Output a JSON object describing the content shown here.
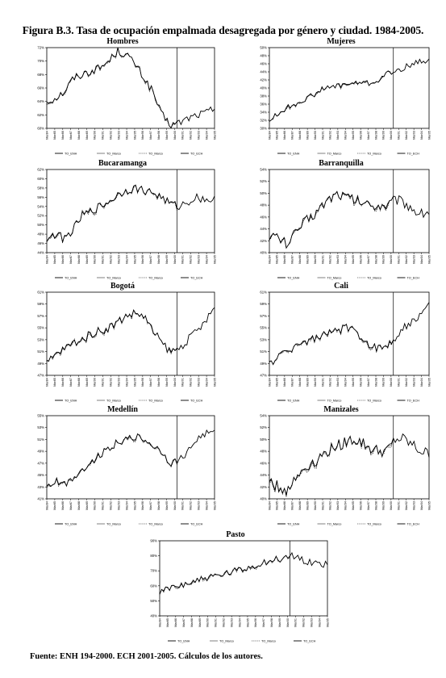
{
  "figure": {
    "title": "Figura B.3. Tasa de ocupación empalmada desagregada por género y ciudad. 1984-2005.",
    "source": "Fuente: ENH 194-2000.  ECH 2001-2005. Cálculos de los autores."
  },
  "chart_data": [
    {
      "type": "line",
      "title": "Hombres",
      "ylim": [
        0.6,
        0.72
      ],
      "yticks": [
        "60%",
        "62%",
        "64%",
        "66%",
        "68%",
        "70%",
        "72%"
      ],
      "xticks": [
        "Mar84",
        "Mar85",
        "Mar86",
        "Mar87",
        "Mar88",
        "Mar89",
        "Mar90",
        "Mar91",
        "Mar92",
        "Mar93",
        "Mar94",
        "Mar95",
        "Mar96",
        "Mar97",
        "Mar98",
        "Mar99",
        "Mar00",
        "Mar01",
        "Mar02",
        "Mar03",
        "Mar04",
        "Mar05"
      ],
      "legend": [
        "TO_ENH",
        "TO_Marco",
        "TO_Marco",
        "TO_ECH"
      ],
      "break_index": 66,
      "anchors": [
        0.64,
        0.645,
        0.655,
        0.675,
        0.68,
        0.685,
        0.69,
        0.7,
        0.715,
        0.71,
        0.695,
        0.675,
        0.655,
        0.62,
        0.605,
        0.608,
        0.615,
        0.62,
        0.623,
        0.63
      ],
      "noise": 0.006
    },
    {
      "type": "line",
      "title": "Mujeres",
      "ylim": [
        0.3,
        0.5
      ],
      "yticks": [
        "30%",
        "32%",
        "34%",
        "36%",
        "38%",
        "40%",
        "42%",
        "44%",
        "46%",
        "48%",
        "50%"
      ],
      "xticks": [
        "Mar84",
        "Mar85",
        "Mar86",
        "Mar87",
        "Mar88",
        "Mar89",
        "Mar90",
        "Mar91",
        "Mar92",
        "Mar93",
        "Mar94",
        "Mar95",
        "Mar96",
        "Mar97",
        "Mar98",
        "Mar99",
        "Mar00",
        "Mar01",
        "Mar02",
        "Mar03",
        "Mar04",
        "Mar05"
      ],
      "legend": [
        "TO_ENH",
        "TO_Marco",
        "TO_Marco",
        "TO_ECH"
      ],
      "break_index": 66,
      "anchors": [
        0.32,
        0.335,
        0.35,
        0.36,
        0.37,
        0.38,
        0.395,
        0.4,
        0.405,
        0.41,
        0.41,
        0.415,
        0.41,
        0.42,
        0.435,
        0.44,
        0.45,
        0.46,
        0.465,
        0.47
      ],
      "noise": 0.007
    },
    {
      "type": "line",
      "title": "Bucaramanga",
      "ylim": [
        0.44,
        0.62
      ],
      "yticks": [
        "44%",
        "46%",
        "48%",
        "50%",
        "52%",
        "54%",
        "56%",
        "58%",
        "60%",
        "62%"
      ],
      "xticks": [
        "Mar84",
        "Mar85",
        "Mar86",
        "Mar87",
        "Mar88",
        "Mar89",
        "Mar90",
        "Mar91",
        "Mar92",
        "Mar93",
        "Mar94",
        "Mar95",
        "Mar96",
        "Mar97",
        "Mar98",
        "Mar99",
        "Mar00",
        "Mar01",
        "Mar02",
        "Mar03",
        "Mar04",
        "Mar05"
      ],
      "legend": [
        "TO_ENH",
        "TO_Marco",
        "TO_Marco",
        "TO_ECH"
      ],
      "break_index": 66,
      "anchors": [
        0.47,
        0.48,
        0.47,
        0.49,
        0.52,
        0.53,
        0.54,
        0.55,
        0.565,
        0.575,
        0.58,
        0.575,
        0.57,
        0.56,
        0.545,
        0.54,
        0.55,
        0.56,
        0.555,
        0.555
      ],
      "noise": 0.009
    },
    {
      "type": "line",
      "title": "Barranquilla",
      "ylim": [
        0.4,
        0.54
      ],
      "yticks": [
        "40%",
        "42%",
        "44%",
        "46%",
        "48%",
        "50%",
        "52%",
        "54%"
      ],
      "xticks": [
        "Mar84",
        "Mar85",
        "Mar86",
        "Mar87",
        "Mar88",
        "Mar89",
        "Mar90",
        "Mar91",
        "Mar92",
        "Mar93",
        "Mar94",
        "Mar95",
        "Mar96",
        "Mar97",
        "Mar98",
        "Mar99",
        "Mar00",
        "Mar01",
        "Mar02",
        "Mar03",
        "Mar04",
        "Mar05"
      ],
      "legend": [
        "TO_ENH",
        "TO_Marco",
        "TO_Marco",
        "TO_ECH"
      ],
      "break_index": 66,
      "anchors": [
        0.43,
        0.425,
        0.415,
        0.43,
        0.45,
        0.46,
        0.475,
        0.49,
        0.5,
        0.495,
        0.49,
        0.485,
        0.48,
        0.48,
        0.48,
        0.49,
        0.485,
        0.475,
        0.465,
        0.47
      ],
      "noise": 0.009
    },
    {
      "type": "line",
      "title": "Bogotá",
      "ylim": [
        0.47,
        0.61
      ],
      "yticks": [
        "47%",
        "49%",
        "51%",
        "53%",
        "55%",
        "57%",
        "59%",
        "61%"
      ],
      "xticks": [
        "Mar84",
        "Mar85",
        "Mar86",
        "Mar87",
        "Mar88",
        "Mar89",
        "Mar90",
        "Mar91",
        "Mar92",
        "Mar93",
        "Mar94",
        "Mar95",
        "Mar96",
        "Mar97",
        "Mar98",
        "Mar99",
        "Mar00",
        "Mar01",
        "Mar02",
        "Mar03",
        "Mar04",
        "Mar05"
      ],
      "legend": [
        "TO_ENH",
        "TO_Marco",
        "TO_Marco",
        "TO_ECH"
      ],
      "break_index": 66,
      "anchors": [
        0.49,
        0.505,
        0.515,
        0.525,
        0.53,
        0.54,
        0.545,
        0.55,
        0.56,
        0.57,
        0.575,
        0.57,
        0.545,
        0.525,
        0.51,
        0.515,
        0.53,
        0.545,
        0.56,
        0.585
      ],
      "noise": 0.007
    },
    {
      "type": "line",
      "title": "Cali",
      "ylim": [
        0.47,
        0.61
      ],
      "yticks": [
        "47%",
        "49%",
        "51%",
        "53%",
        "55%",
        "57%",
        "59%",
        "61%"
      ],
      "xticks": [
        "Mar84",
        "Mar85",
        "Mar86",
        "Mar87",
        "Mar88",
        "Mar89",
        "Mar90",
        "Mar91",
        "Mar92",
        "Mar93",
        "Mar94",
        "Mar95",
        "Mar96",
        "Mar97",
        "Mar98",
        "Mar99",
        "Mar00",
        "Mar01",
        "Mar02",
        "Mar03",
        "Mar04",
        "Mar05"
      ],
      "legend": [
        "TO_ENH",
        "TO_Marco",
        "TO_Marco",
        "TO_ECH"
      ],
      "break_index": 66,
      "anchors": [
        0.49,
        0.5,
        0.51,
        0.52,
        0.525,
        0.53,
        0.535,
        0.54,
        0.545,
        0.55,
        0.545,
        0.535,
        0.52,
        0.515,
        0.52,
        0.535,
        0.55,
        0.56,
        0.57,
        0.59
      ],
      "noise": 0.007
    },
    {
      "type": "line",
      "title": "Medellín",
      "ylim": [
        0.41,
        0.55
      ],
      "yticks": [
        "41%",
        "43%",
        "45%",
        "47%",
        "49%",
        "51%",
        "53%",
        "55%"
      ],
      "xticks": [
        "Mar84",
        "Mar85",
        "Mar86",
        "Mar87",
        "Mar88",
        "Mar89",
        "Mar90",
        "Mar91",
        "Mar92",
        "Mar93",
        "Mar94",
        "Mar95",
        "Mar96",
        "Mar97",
        "Mar98",
        "Mar99",
        "Mar00",
        "Mar01",
        "Mar02",
        "Mar03",
        "Mar04",
        "Mar05"
      ],
      "legend": [
        "TO_ENH",
        "TO_Marco",
        "TO_Marco",
        "TO_ECH"
      ],
      "break_index": 66,
      "anchors": [
        0.43,
        0.44,
        0.435,
        0.445,
        0.46,
        0.47,
        0.485,
        0.495,
        0.505,
        0.51,
        0.515,
        0.51,
        0.5,
        0.49,
        0.47,
        0.475,
        0.49,
        0.51,
        0.52,
        0.52
      ],
      "noise": 0.006
    },
    {
      "type": "line",
      "title": "Manizales",
      "ylim": [
        0.4,
        0.54
      ],
      "yticks": [
        "40%",
        "42%",
        "44%",
        "46%",
        "48%",
        "50%",
        "52%",
        "54%"
      ],
      "xticks": [
        "Mar84",
        "Mar85",
        "Mar86",
        "Mar87",
        "Mar88",
        "Mar89",
        "Mar90",
        "Mar91",
        "Mar92",
        "Mar93",
        "Mar94",
        "Mar95",
        "Mar96",
        "Mar97",
        "Mar98",
        "Mar99",
        "Mar00",
        "Mar01",
        "Mar02",
        "Mar03",
        "Mar04",
        "Mar05"
      ],
      "legend": [
        "TO_ENH",
        "TO_Marco",
        "TO_Marco",
        "TO_ECH"
      ],
      "break_index": 66,
      "anchors": [
        0.43,
        0.42,
        0.415,
        0.43,
        0.45,
        0.46,
        0.47,
        0.48,
        0.49,
        0.495,
        0.5,
        0.495,
        0.485,
        0.48,
        0.48,
        0.5,
        0.5,
        0.49,
        0.48,
        0.475
      ],
      "noise": 0.01
    },
    {
      "type": "line",
      "title": "Pasto",
      "ylim": [
        0.4,
        0.9
      ],
      "yticks": [
        "40%",
        "50%",
        "60%",
        "70%",
        "80%",
        "90%"
      ],
      "xticks": [
        "Mar84",
        "Mar85",
        "Mar86",
        "Mar87",
        "Mar88",
        "Mar89",
        "Mar90",
        "Mar91",
        "Mar92",
        "Mar93",
        "Mar94",
        "Mar95",
        "Mar96",
        "Mar97",
        "Mar98",
        "Mar99",
        "Mar00",
        "Mar01",
        "Mar02",
        "Mar03",
        "Mar04",
        "Mar05"
      ],
      "legend": [
        "TO_ENH",
        "TO_Marco",
        "TO_Marco",
        "TO_ECH"
      ],
      "break_index": 66,
      "anchors": [
        0.55,
        0.58,
        0.6,
        0.62,
        0.63,
        0.65,
        0.66,
        0.67,
        0.69,
        0.7,
        0.72,
        0.74,
        0.76,
        0.77,
        0.78,
        0.8,
        0.78,
        0.76,
        0.75,
        0.74
      ],
      "noise": 0.025
    }
  ]
}
